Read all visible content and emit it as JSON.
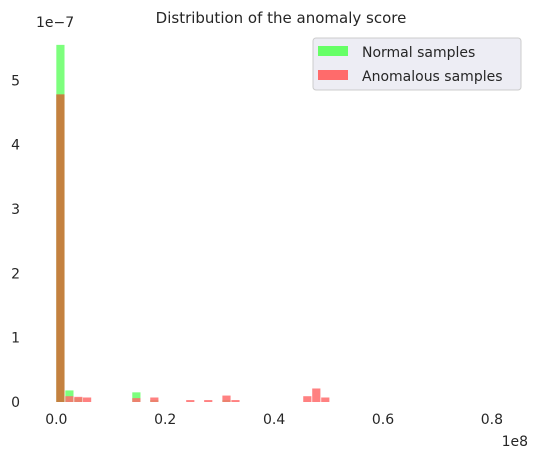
{
  "chart_data": {
    "type": "bar",
    "title": "Distribution of the anomaly score",
    "xlabel": "",
    "ylabel": "",
    "x_offset_label": "1e8",
    "y_offset_label": "1e−7",
    "xlim": [
      -0.03,
      0.87
    ],
    "ylim": [
      0,
      5.75
    ],
    "x_ticks": [
      0.0,
      0.2,
      0.4,
      0.6,
      0.8
    ],
    "x_tick_labels": [
      "0.0",
      "0.2",
      "0.4",
      "0.6",
      "0.8"
    ],
    "y_ticks": [
      0,
      1,
      2,
      3,
      4,
      5
    ],
    "y_tick_labels": [
      "0",
      "1",
      "2",
      "3",
      "4",
      "5"
    ],
    "grid": false,
    "legend_position": "top-right",
    "series": [
      {
        "name": "Normal samples",
        "color": "#66ff66",
        "bin_width": 0.0165,
        "bins_start": [
          0.0,
          0.0165,
          0.033,
          0.1395,
          0.1725,
          0.305
        ],
        "values": [
          5.55,
          0.18,
          0.06,
          0.15,
          0.03,
          0.03
        ]
      },
      {
        "name": "Anomalous samples",
        "color": "#ff6b6b",
        "bin_width": 0.0165,
        "bins_start": [
          0.0,
          0.0165,
          0.033,
          0.049,
          0.1395,
          0.1725,
          0.2385,
          0.2715,
          0.305,
          0.3215,
          0.4535,
          0.47,
          0.4865
        ],
        "values": [
          4.78,
          0.09,
          0.08,
          0.07,
          0.06,
          0.07,
          0.03,
          0.03,
          0.1,
          0.03,
          0.09,
          0.21,
          0.07
        ]
      }
    ]
  }
}
